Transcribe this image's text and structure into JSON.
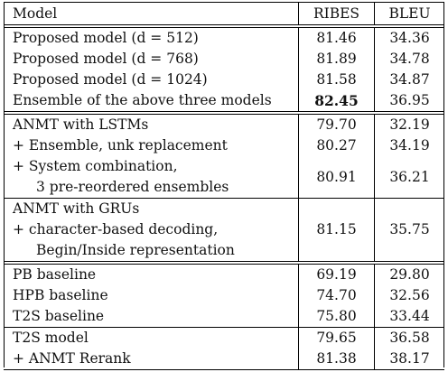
{
  "header": {
    "model": "Model",
    "ribes": "RIBES",
    "bleu": "BLEU"
  },
  "group1": [
    {
      "model": "Proposed model (d = 512)",
      "ribes": "81.46",
      "bleu": "34.36"
    },
    {
      "model": "Proposed model (d = 768)",
      "ribes": "81.89",
      "bleu": "34.78"
    },
    {
      "model": "Proposed model (d = 1024)",
      "ribes": "81.58",
      "bleu": "34.87"
    },
    {
      "model": "Ensemble of the above three models",
      "ribes": "82.45",
      "bleu": "36.95"
    }
  ],
  "group2": {
    "row1": {
      "model": "ANMT with LSTMs",
      "ribes": "79.70",
      "bleu": "32.19"
    },
    "row2": {
      "model": "+ Ensemble, unk replacement",
      "ribes": "80.27",
      "bleu": "34.19"
    },
    "row3": {
      "line1": "+ System combination,",
      "line2": "3 pre-reordered ensembles",
      "ribes": "80.91",
      "bleu": "36.21"
    },
    "row4": {
      "line1": "ANMT with GRUs",
      "line2": "+ character-based decoding,",
      "line3": "Begin/Inside representation",
      "ribes": "81.15",
      "bleu": "35.75"
    }
  },
  "group3": [
    {
      "model": "PB baseline",
      "ribes": "69.19",
      "bleu": "29.80"
    },
    {
      "model": "HPB baseline",
      "ribes": "74.70",
      "bleu": "32.56"
    },
    {
      "model": "T2S baseline",
      "ribes": "75.80",
      "bleu": "33.44"
    }
  ],
  "group4": [
    {
      "model": "T2S model",
      "ribes": "79.65",
      "bleu": "36.58"
    },
    {
      "model": "+ ANMT Rerank",
      "ribes": "81.38",
      "bleu": "38.17"
    }
  ]
}
